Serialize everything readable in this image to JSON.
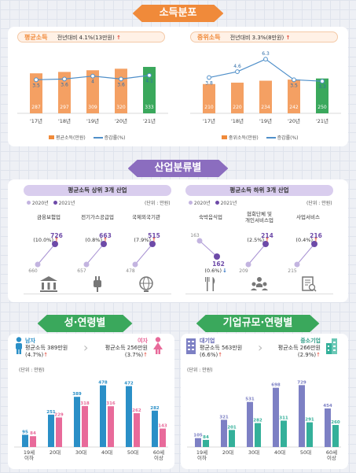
{
  "sections": {
    "income": "소득분포",
    "industry": "산업분류별",
    "gender_age": "성·연령별",
    "firm_age": "기업규모·연령별"
  },
  "avg_income": {
    "title": "평균소득",
    "change": "전년대비 4.1%(13만원)",
    "arrow": "↑"
  },
  "median_income": {
    "title": "중위소득",
    "change": "전년대비 3.3%(8만원)",
    "arrow": "↑"
  },
  "income_legend": {
    "avg_bar": "평균소득(만원)",
    "median_bar": "중위소득(만원)",
    "rate": "증감률(%)"
  },
  "industry": {
    "top_title": "평균소득 상위 3개 산업",
    "bottom_title": "평균소득 하위 3개 산업",
    "legend_2020": "2020년",
    "legend_2021": "2021년",
    "unit": "(단위 : 만원)",
    "top": [
      {
        "name": "금융보험업",
        "v2020": "660",
        "v2021": "726",
        "rate": "(10.0%)",
        "arrow": "↑",
        "icon": "bank-icon"
      },
      {
        "name": "전기가스공급업",
        "v2020": "657",
        "v2021": "663",
        "rate": "(0.8%)",
        "arrow": "↑",
        "icon": "plug-icon"
      },
      {
        "name": "국제외국기관",
        "v2020": "478",
        "v2021": "515",
        "rate": "(7.9%)",
        "arrow": "↑",
        "icon": "globe-icon"
      }
    ],
    "bottom": [
      {
        "name": "숙박음식업",
        "v2020": "163",
        "v2021": "162",
        "rate": "(0.6%)",
        "arrow": "↓",
        "icon": "cutlery-icon"
      },
      {
        "name": "협회단체 및\n개인서비스업",
        "v2020": "209",
        "v2021": "214",
        "rate": "(2.5%)",
        "arrow": "↑",
        "icon": "people-icon"
      },
      {
        "name": "사업서비스",
        "v2020": "215",
        "v2021": "216",
        "rate": "(0.4%)",
        "arrow": "↑",
        "icon": "document-icon"
      }
    ]
  },
  "gender": {
    "male_label": "남자",
    "male_line": "평균소득 389만원",
    "male_rate": "(4.7%)",
    "female_label": "여자",
    "female_line": "평균소득 256만원",
    "female_rate": "(3.7%)",
    "arrow": "↑",
    "unit": "(단위 : 만원)"
  },
  "firm": {
    "large_label": "대기업",
    "large_line": "평균소득 563만원",
    "large_rate": "(6.6%)",
    "sme_label": "중소기업",
    "sme_line": "평균소득 266만원",
    "sme_rate": "(2.9%)",
    "arrow": "↑",
    "unit": "(단위 : 만원)"
  },
  "colors": {
    "green": "#3aa85c",
    "purple": "#8b6dbf",
    "orange": "#f08a3a",
    "blue_line": "#4f8fc9",
    "male": "#2a8fc7",
    "female": "#e86a9a",
    "large": "#7d80c4",
    "sme": "#34b09a",
    "red": "#e24a3a"
  },
  "chart_data": [
    {
      "type": "bar",
      "title": "평균소득",
      "categories": [
        "'17년",
        "'18년",
        "'19년",
        "'20년",
        "'21년"
      ],
      "series": [
        {
          "name": "평균소득(만원)",
          "values": [
            287,
            297,
            309,
            320,
            333
          ]
        },
        {
          "name": "증감률(%)",
          "values": [
            3.5,
            3.6,
            4.0,
            3.6,
            4.1
          ]
        }
      ]
    },
    {
      "type": "bar",
      "title": "중위소득",
      "categories": [
        "'17년",
        "'18년",
        "'19년",
        "'20년",
        "'21년"
      ],
      "series": [
        {
          "name": "중위소득(만원)",
          "values": [
            210,
            220,
            234,
            242,
            250
          ]
        },
        {
          "name": "증감률(%)",
          "values": [
            3.8,
            4.6,
            6.3,
            3.5,
            3.3
          ]
        }
      ]
    },
    {
      "type": "bar",
      "title": "성·연령별",
      "categories": [
        "19세\n이하",
        "20대",
        "30대",
        "40대",
        "50대",
        "60세\n이상"
      ],
      "series": [
        {
          "name": "남자",
          "values": [
            95,
            251,
            389,
            478,
            472,
            282
          ]
        },
        {
          "name": "여자",
          "values": [
            84,
            229,
            318,
            316,
            262,
            143
          ]
        }
      ]
    },
    {
      "type": "bar",
      "title": "기업규모·연령별",
      "categories": [
        "19세\n이하",
        "20대",
        "30대",
        "40대",
        "50대",
        "60세\n이상"
      ],
      "series": [
        {
          "name": "대기업",
          "values": [
            105,
            321,
            531,
            698,
            729,
            454
          ]
        },
        {
          "name": "중소기업",
          "values": [
            84,
            201,
            282,
            311,
            291,
            260
          ]
        }
      ]
    }
  ]
}
